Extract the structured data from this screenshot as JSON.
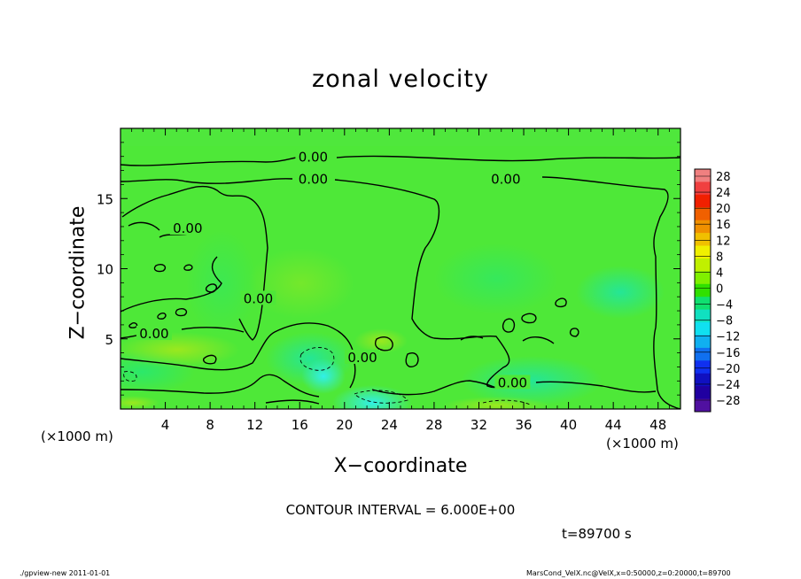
{
  "chart_data": {
    "type": "heatmap",
    "title": "zonal velocity",
    "xlabel": "X−coordinate",
    "ylabel": "Z−coordinate",
    "x_unit_left": "(×1000 m)",
    "x_unit_right": "(×1000 m)",
    "xlim": [
      0,
      50
    ],
    "ylim": [
      0,
      20
    ],
    "xticks": [
      4,
      8,
      12,
      16,
      20,
      24,
      28,
      32,
      36,
      40,
      44,
      48
    ],
    "yticks": [
      5,
      10,
      15
    ],
    "contour_interval_text": "CONTOUR INTERVAL = 6.000E+00",
    "contour_labels": [
      {
        "text": "0.00",
        "x": 17.2,
        "y": 17.9
      },
      {
        "text": "0.00",
        "x": 17.2,
        "y": 16.3
      },
      {
        "text": "0.00",
        "x": 34.4,
        "y": 16.3
      },
      {
        "text": "0.00",
        "x": 6.0,
        "y": 12.8
      },
      {
        "text": "0.00",
        "x": 12.3,
        "y": 7.8
      },
      {
        "text": "0.00",
        "x": 3.0,
        "y": 5.3
      },
      {
        "text": "0.00",
        "x": 21.6,
        "y": 3.6
      },
      {
        "text": "0.00",
        "x": 35.0,
        "y": 1.8
      }
    ],
    "colorbar": {
      "labels": [
        "28",
        "24",
        "20",
        "16",
        "12",
        "8",
        "4",
        "0",
        "−4",
        "−8",
        "−12",
        "−16",
        "−20",
        "−24",
        "−28"
      ],
      "colors": [
        "#f08080",
        "#f04040",
        "#f02000",
        "#f06000",
        "#f09000",
        "#f0c000",
        "#f0f000",
        "#c0f000",
        "#80f000",
        "#30e000",
        "#10e070",
        "#10e0c0",
        "#10e0f0",
        "#10b0f0",
        "#1070f0",
        "#1030f0",
        "#1010c0",
        "#2000a0",
        "#5010a0"
      ]
    }
  },
  "annotations": {
    "timestamp": "t=89700 s",
    "footer_left": "./gpview-new  2011-01-01",
    "footer_right": "MarsCond_VelX.nc@VelX,x=0:50000,z=0:20000,t=89700"
  }
}
